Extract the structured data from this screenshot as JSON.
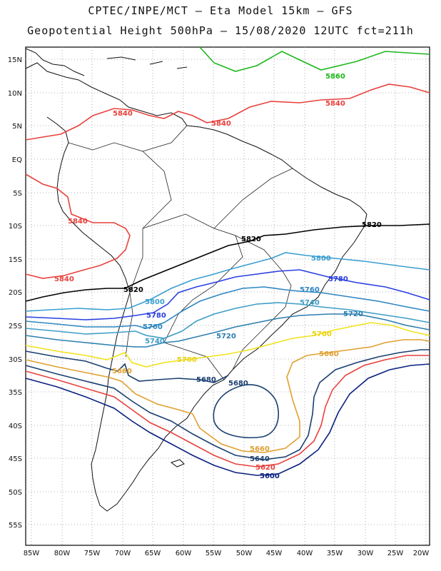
{
  "header": {
    "line1": "CPTEC/INPE/MCT –  Eta Model 15km – GFS",
    "line2": "Geopotential Height 500hPa – 15/08/2020 12UTC fct=211h"
  },
  "axes": {
    "lat_labels": [
      "15N",
      "10N",
      "5N",
      "EQ",
      "5S",
      "10S",
      "15S",
      "20S",
      "25S",
      "30S",
      "35S",
      "40S",
      "45S",
      "50S",
      "55S"
    ],
    "lon_labels": [
      "85W",
      "80W",
      "75W",
      "70W",
      "65W",
      "60W",
      "55W",
      "50W",
      "45W",
      "40W",
      "35W",
      "30W",
      "25W",
      "20W"
    ]
  },
  "contours": [
    {
      "value": "5860",
      "color": "#1bb81b"
    },
    {
      "value": "5840",
      "color": "#e8413c"
    },
    {
      "value": "5820",
      "color": "#000000"
    },
    {
      "value": "5800",
      "color": "#3a9fd0"
    },
    {
      "value": "5780",
      "color": "#2a3fe0"
    },
    {
      "value": "5760",
      "color": "#2e86c1"
    },
    {
      "value": "5740",
      "color": "#3d9dc6"
    },
    {
      "value": "5720",
      "color": "#2b7fb0"
    },
    {
      "value": "5700",
      "color": "#f0e21a"
    },
    {
      "value": "5680",
      "color": "#1a3f70"
    },
    {
      "value": "5660",
      "color": "#e0a030"
    },
    {
      "value": "5640",
      "color": "#1a3f70"
    },
    {
      "value": "5620",
      "color": "#e8413c"
    },
    {
      "value": "5600",
      "color": "#0a1f80"
    }
  ]
}
